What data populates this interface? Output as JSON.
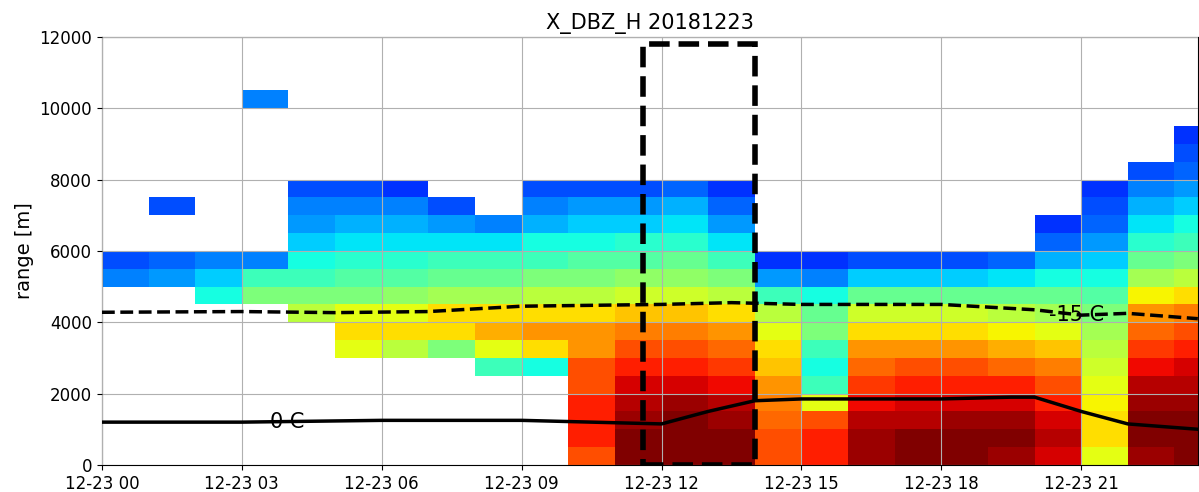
{
  "chart_data": {
    "type": "heatmap",
    "title": "X_DBZ_H 20181223",
    "y_label": "range [m]",
    "xlim": [
      0,
      23.5
    ],
    "ylim": [
      0,
      12000
    ],
    "xticks": [
      {
        "value": 0,
        "label": "12-23 00"
      },
      {
        "value": 3,
        "label": "12-23 03"
      },
      {
        "value": 6,
        "label": "12-23 06"
      },
      {
        "value": 9,
        "label": "12-23 09"
      },
      {
        "value": 12,
        "label": "12-23 12"
      },
      {
        "value": 15,
        "label": "12-23 15"
      },
      {
        "value": 18,
        "label": "12-23 18"
      },
      {
        "value": 21,
        "label": "12-23 21"
      }
    ],
    "yticks": [
      0,
      2000,
      4000,
      6000,
      8000,
      10000,
      12000
    ],
    "grid": true,
    "color": "jet",
    "value_range": [
      -5,
      35
    ],
    "x_edges": [
      0,
      1,
      2,
      3,
      4,
      5,
      6,
      7,
      8,
      9,
      10,
      11,
      12,
      13,
      14,
      15,
      16,
      17,
      18,
      19,
      20,
      21,
      22,
      23,
      24
    ],
    "y_edges": [
      0,
      500,
      1000,
      1500,
      2000,
      2500,
      3000,
      3500,
      4000,
      4500,
      5000,
      5500,
      6000,
      6500,
      7000,
      7500,
      8000,
      8500,
      9000,
      9500,
      10000,
      10500,
      11000,
      11500,
      12000
    ],
    "cells": [
      [
        null,
        null,
        null,
        null,
        null,
        null,
        null,
        null,
        null,
        null,
        28,
        35,
        36,
        35,
        28,
        30,
        34,
        35,
        35,
        34,
        32,
        20,
        34,
        36
      ],
      [
        null,
        null,
        null,
        null,
        null,
        null,
        null,
        null,
        null,
        null,
        30,
        35,
        36,
        35,
        28,
        30,
        34,
        35,
        36,
        35,
        33,
        22,
        35,
        36
      ],
      [
        null,
        null,
        null,
        null,
        null,
        null,
        null,
        null,
        null,
        null,
        30,
        34,
        35,
        34,
        27,
        28,
        33,
        33,
        34,
        34,
        32,
        22,
        35,
        35
      ],
      [
        null,
        null,
        null,
        null,
        null,
        null,
        null,
        null,
        null,
        null,
        30,
        33,
        34,
        33,
        26,
        20,
        31,
        32,
        32,
        32,
        30,
        21,
        34,
        34
      ],
      [
        null,
        null,
        null,
        null,
        null,
        null,
        null,
        null,
        null,
        null,
        28,
        32,
        32,
        31,
        25,
        12,
        29,
        30,
        30,
        30,
        28,
        20,
        33,
        33
      ],
      [
        null,
        null,
        null,
        null,
        null,
        null,
        null,
        null,
        12,
        10,
        28,
        30,
        30,
        29,
        23,
        10,
        27,
        28,
        28,
        27,
        26,
        19,
        31,
        32
      ],
      [
        null,
        null,
        null,
        null,
        null,
        20,
        18,
        15,
        20,
        22,
        25,
        28,
        28,
        27,
        22,
        12,
        25,
        25,
        25,
        24,
        23,
        18,
        29,
        30
      ],
      [
        null,
        null,
        null,
        null,
        null,
        22,
        22,
        22,
        24,
        25,
        25,
        26,
        26,
        25,
        20,
        15,
        22,
        22,
        22,
        21,
        20,
        17,
        27,
        28
      ],
      [
        null,
        null,
        null,
        null,
        18,
        20,
        20,
        22,
        22,
        22,
        22,
        23,
        23,
        22,
        18,
        14,
        19,
        19,
        19,
        18,
        17,
        15,
        25,
        26
      ],
      [
        null,
        null,
        10,
        15,
        15,
        15,
        16,
        17,
        17,
        18,
        18,
        19,
        19,
        18,
        12,
        10,
        14,
        14,
        14,
        14,
        14,
        13,
        21,
        22
      ],
      [
        5,
        6,
        8,
        12,
        12,
        13,
        13,
        14,
        14,
        15,
        15,
        16,
        16,
        15,
        6,
        5,
        8,
        8,
        8,
        9,
        10,
        10,
        17,
        18
      ],
      [
        3,
        4,
        5,
        5,
        10,
        11,
        11,
        12,
        12,
        12,
        13,
        13,
        14,
        12,
        2,
        2,
        3,
        3,
        3,
        4,
        7,
        8,
        14,
        15
      ],
      [
        null,
        null,
        null,
        null,
        8,
        9,
        9,
        9,
        9,
        10,
        10,
        11,
        11,
        9,
        null,
        null,
        null,
        null,
        null,
        null,
        4,
        6,
        11,
        12
      ],
      [
        null,
        null,
        null,
        null,
        6,
        7,
        7,
        6,
        5,
        7,
        8,
        8,
        9,
        6,
        null,
        null,
        null,
        null,
        null,
        null,
        2,
        4,
        9,
        10
      ],
      [
        null,
        3,
        null,
        null,
        5,
        5,
        5,
        3,
        null,
        5,
        6,
        6,
        7,
        4,
        null,
        null,
        null,
        null,
        null,
        null,
        null,
        3,
        7,
        8
      ],
      [
        null,
        null,
        null,
        null,
        3,
        3,
        2,
        null,
        null,
        3,
        3,
        3,
        4,
        2,
        null,
        null,
        null,
        null,
        null,
        null,
        null,
        2,
        5,
        6
      ],
      [
        null,
        null,
        null,
        null,
        null,
        null,
        null,
        null,
        null,
        null,
        null,
        null,
        null,
        null,
        null,
        null,
        null,
        null,
        null,
        null,
        null,
        null,
        3,
        4
      ],
      [
        null,
        null,
        null,
        null,
        null,
        null,
        null,
        null,
        null,
        null,
        null,
        null,
        null,
        null,
        null,
        null,
        null,
        null,
        null,
        null,
        null,
        null,
        null,
        3
      ],
      [
        null,
        null,
        null,
        null,
        null,
        null,
        null,
        null,
        null,
        null,
        null,
        null,
        null,
        null,
        null,
        null,
        null,
        null,
        null,
        null,
        null,
        null,
        null,
        2
      ],
      [
        null,
        null,
        null,
        null,
        null,
        null,
        null,
        null,
        null,
        null,
        null,
        null,
        null,
        null,
        null,
        null,
        null,
        null,
        null,
        null,
        null,
        null,
        null,
        null
      ],
      [
        null,
        null,
        null,
        5,
        null,
        null,
        null,
        null,
        null,
        null,
        null,
        null,
        null,
        null,
        null,
        null,
        null,
        null,
        null,
        null,
        null,
        null,
        null,
        null
      ],
      [
        null,
        null,
        null,
        null,
        null,
        null,
        null,
        null,
        null,
        null,
        null,
        null,
        null,
        null,
        null,
        null,
        null,
        null,
        null,
        null,
        null,
        null,
        null,
        null
      ],
      [
        null,
        null,
        null,
        null,
        null,
        null,
        null,
        null,
        null,
        null,
        null,
        null,
        null,
        null,
        null,
        null,
        null,
        null,
        null,
        null,
        null,
        null,
        null,
        null
      ],
      [
        null,
        null,
        null,
        null,
        null,
        null,
        null,
        null,
        null,
        null,
        null,
        null,
        null,
        null,
        null,
        null,
        null,
        null,
        null,
        null,
        null,
        null,
        null,
        null
      ]
    ],
    "series": [
      {
        "name": "0 C",
        "type": "line",
        "color": "#000000",
        "line_style": "solid",
        "x": [
          0,
          3,
          6,
          9,
          12,
          13,
          14,
          15,
          18,
          19.5,
          20,
          21,
          22,
          23.5
        ],
        "values": [
          1200,
          1200,
          1250,
          1250,
          1150,
          1500,
          1800,
          1850,
          1850,
          1900,
          1900,
          1500,
          1150,
          1000
        ]
      },
      {
        "name": "-15 C",
        "type": "line",
        "color": "#000000",
        "line_style": "dashed",
        "x": [
          0,
          3,
          5,
          7,
          9,
          12,
          13.5,
          15,
          18,
          20,
          21,
          22,
          23.5
        ],
        "values": [
          4280,
          4300,
          4270,
          4300,
          4450,
          4500,
          4550,
          4500,
          4500,
          4350,
          4200,
          4250,
          4100
        ]
      }
    ],
    "highlight": {
      "x": [
        11.6,
        14.0
      ],
      "y": [
        0,
        11800
      ],
      "color": "#000000",
      "line_style": "dashed"
    }
  }
}
